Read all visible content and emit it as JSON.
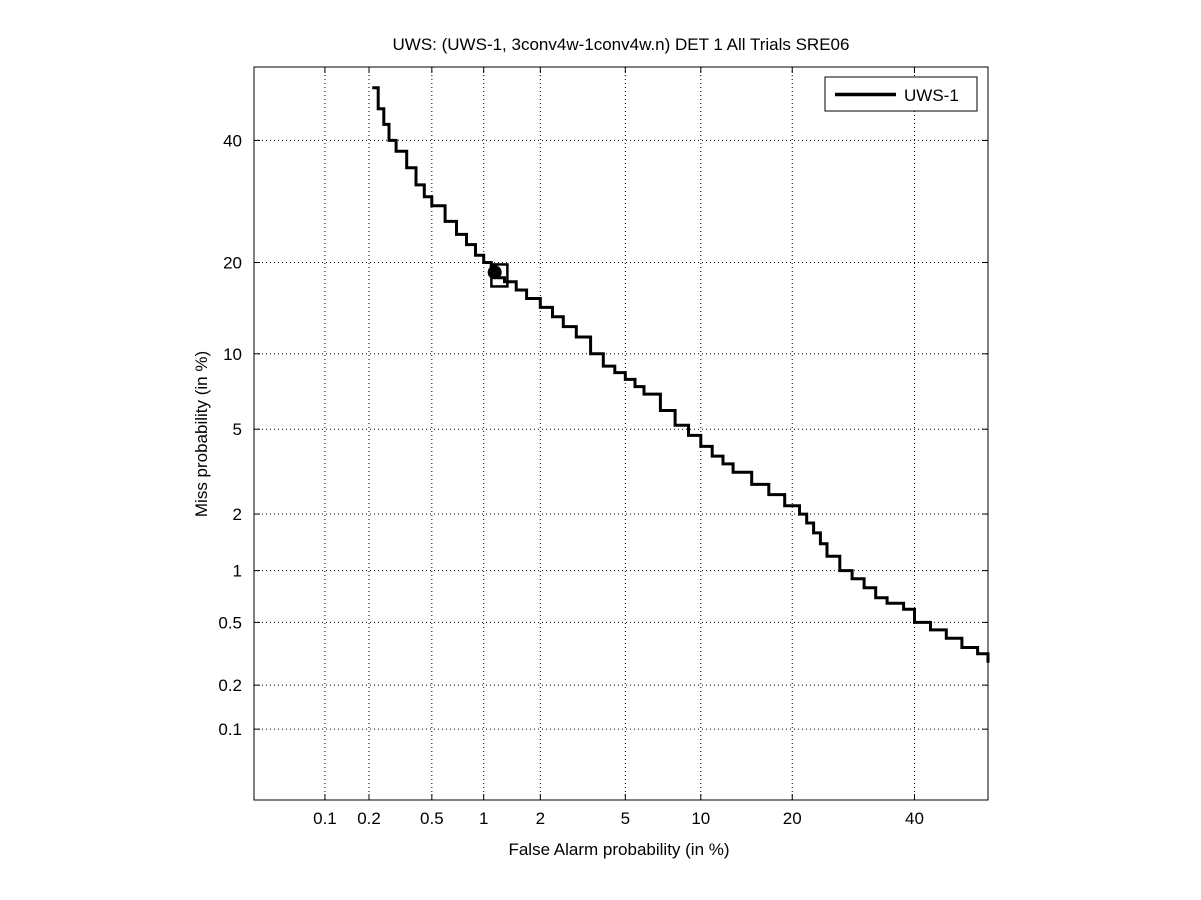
{
  "chart_data": {
    "type": "line",
    "title": "UWS: (UWS-1, 3conv4w-1conv4w.n) DET 1 All Trials SRE06",
    "xlabel": "False Alarm probability (in %)",
    "ylabel": "Miss probability (in %)",
    "scale": "normal-deviate (DET)",
    "xlim": [
      0.03,
      54
    ],
    "ylim": [
      0.03,
      54
    ],
    "grid": true,
    "legend_position": "top-right",
    "x_ticks": [
      {
        "value": 0.1,
        "label": "0.1"
      },
      {
        "value": 0.2,
        "label": "0.2"
      },
      {
        "value": 0.5,
        "label": "0.5"
      },
      {
        "value": 1,
        "label": "1"
      },
      {
        "value": 2,
        "label": "2"
      },
      {
        "value": 5,
        "label": "5"
      },
      {
        "value": 10,
        "label": "10"
      },
      {
        "value": 20,
        "label": "20"
      },
      {
        "value": 40,
        "label": "40"
      }
    ],
    "y_ticks": [
      {
        "value": 0.1,
        "label": "0.1"
      },
      {
        "value": 0.2,
        "label": "0.2"
      },
      {
        "value": 0.5,
        "label": "0.5"
      },
      {
        "value": 1,
        "label": "1"
      },
      {
        "value": 2,
        "label": "2"
      },
      {
        "value": 5,
        "label": "5"
      },
      {
        "value": 10,
        "label": "10"
      },
      {
        "value": 20,
        "label": "20"
      },
      {
        "value": 40,
        "label": "40"
      }
    ],
    "series": [
      {
        "name": "UWS-1",
        "color": "#000000",
        "x": [
          0.21,
          0.23,
          0.25,
          0.27,
          0.3,
          0.35,
          0.4,
          0.45,
          0.5,
          0.6,
          0.7,
          0.8,
          0.9,
          1.0,
          1.1,
          1.2,
          1.3,
          1.5,
          1.7,
          2.0,
          2.3,
          2.6,
          3.0,
          3.5,
          4.0,
          4.5,
          5.0,
          5.5,
          6.0,
          7.0,
          8.0,
          9.0,
          10.0,
          11.0,
          12.0,
          13.0,
          15.0,
          17.0,
          19.0,
          21.0,
          22.0,
          23.0,
          24.0,
          25.0,
          27.0,
          29.0,
          31.0,
          33.0,
          35.0,
          38.0,
          40.0,
          43.0,
          46.0,
          49.0,
          52.0,
          54.0
        ],
        "y": [
          50.0,
          46.0,
          43.0,
          40.0,
          38.0,
          35.0,
          32.0,
          30.0,
          28.5,
          26.0,
          24.0,
          22.5,
          21.0,
          20.0,
          19.0,
          18.0,
          17.5,
          16.5,
          15.5,
          14.5,
          13.5,
          12.5,
          11.5,
          10.0,
          9.0,
          8.5,
          8.0,
          7.5,
          7.0,
          6.0,
          5.2,
          4.7,
          4.2,
          3.8,
          3.5,
          3.2,
          2.8,
          2.5,
          2.2,
          2.0,
          1.8,
          1.6,
          1.4,
          1.2,
          1.0,
          0.9,
          0.8,
          0.7,
          0.65,
          0.6,
          0.5,
          0.45,
          0.4,
          0.35,
          0.32,
          0.28
        ]
      }
    ],
    "markers": [
      {
        "shape": "circle",
        "x": 1.15,
        "y": 18.7
      },
      {
        "shape": "square",
        "x": 1.22,
        "y": 18.3
      }
    ]
  }
}
